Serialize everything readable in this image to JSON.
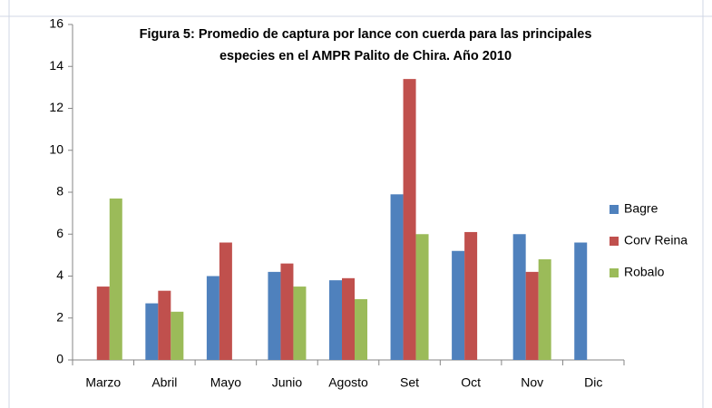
{
  "chart_data": {
    "type": "bar",
    "title": [
      "Figura 5: Promedio de captura por lance con cuerda para las principales",
      "especies en el AMPR Palito de Chira.  Año 2010"
    ],
    "categories": [
      "Marzo",
      "Abril",
      "Mayo",
      "Junio",
      "Agosto",
      "Set",
      "Oct",
      "Nov",
      "Dic"
    ],
    "series": [
      {
        "name": "Bagre",
        "color": "#4f81bd",
        "values": [
          null,
          2.7,
          4.0,
          4.2,
          3.8,
          7.9,
          5.2,
          6.0,
          5.6
        ]
      },
      {
        "name": "Corv Reina",
        "color": "#c0504d",
        "values": [
          3.5,
          3.3,
          5.6,
          4.6,
          3.9,
          13.4,
          6.1,
          4.2,
          null
        ]
      },
      {
        "name": "Robalo",
        "color": "#9bbb59",
        "values": [
          7.7,
          2.3,
          null,
          3.5,
          2.9,
          6.0,
          null,
          4.8,
          null
        ]
      }
    ],
    "ylim": [
      0,
      16
    ],
    "yticks": [
      0,
      2,
      4,
      6,
      8,
      10,
      12,
      14,
      16
    ],
    "grid": false,
    "legend": "right"
  }
}
